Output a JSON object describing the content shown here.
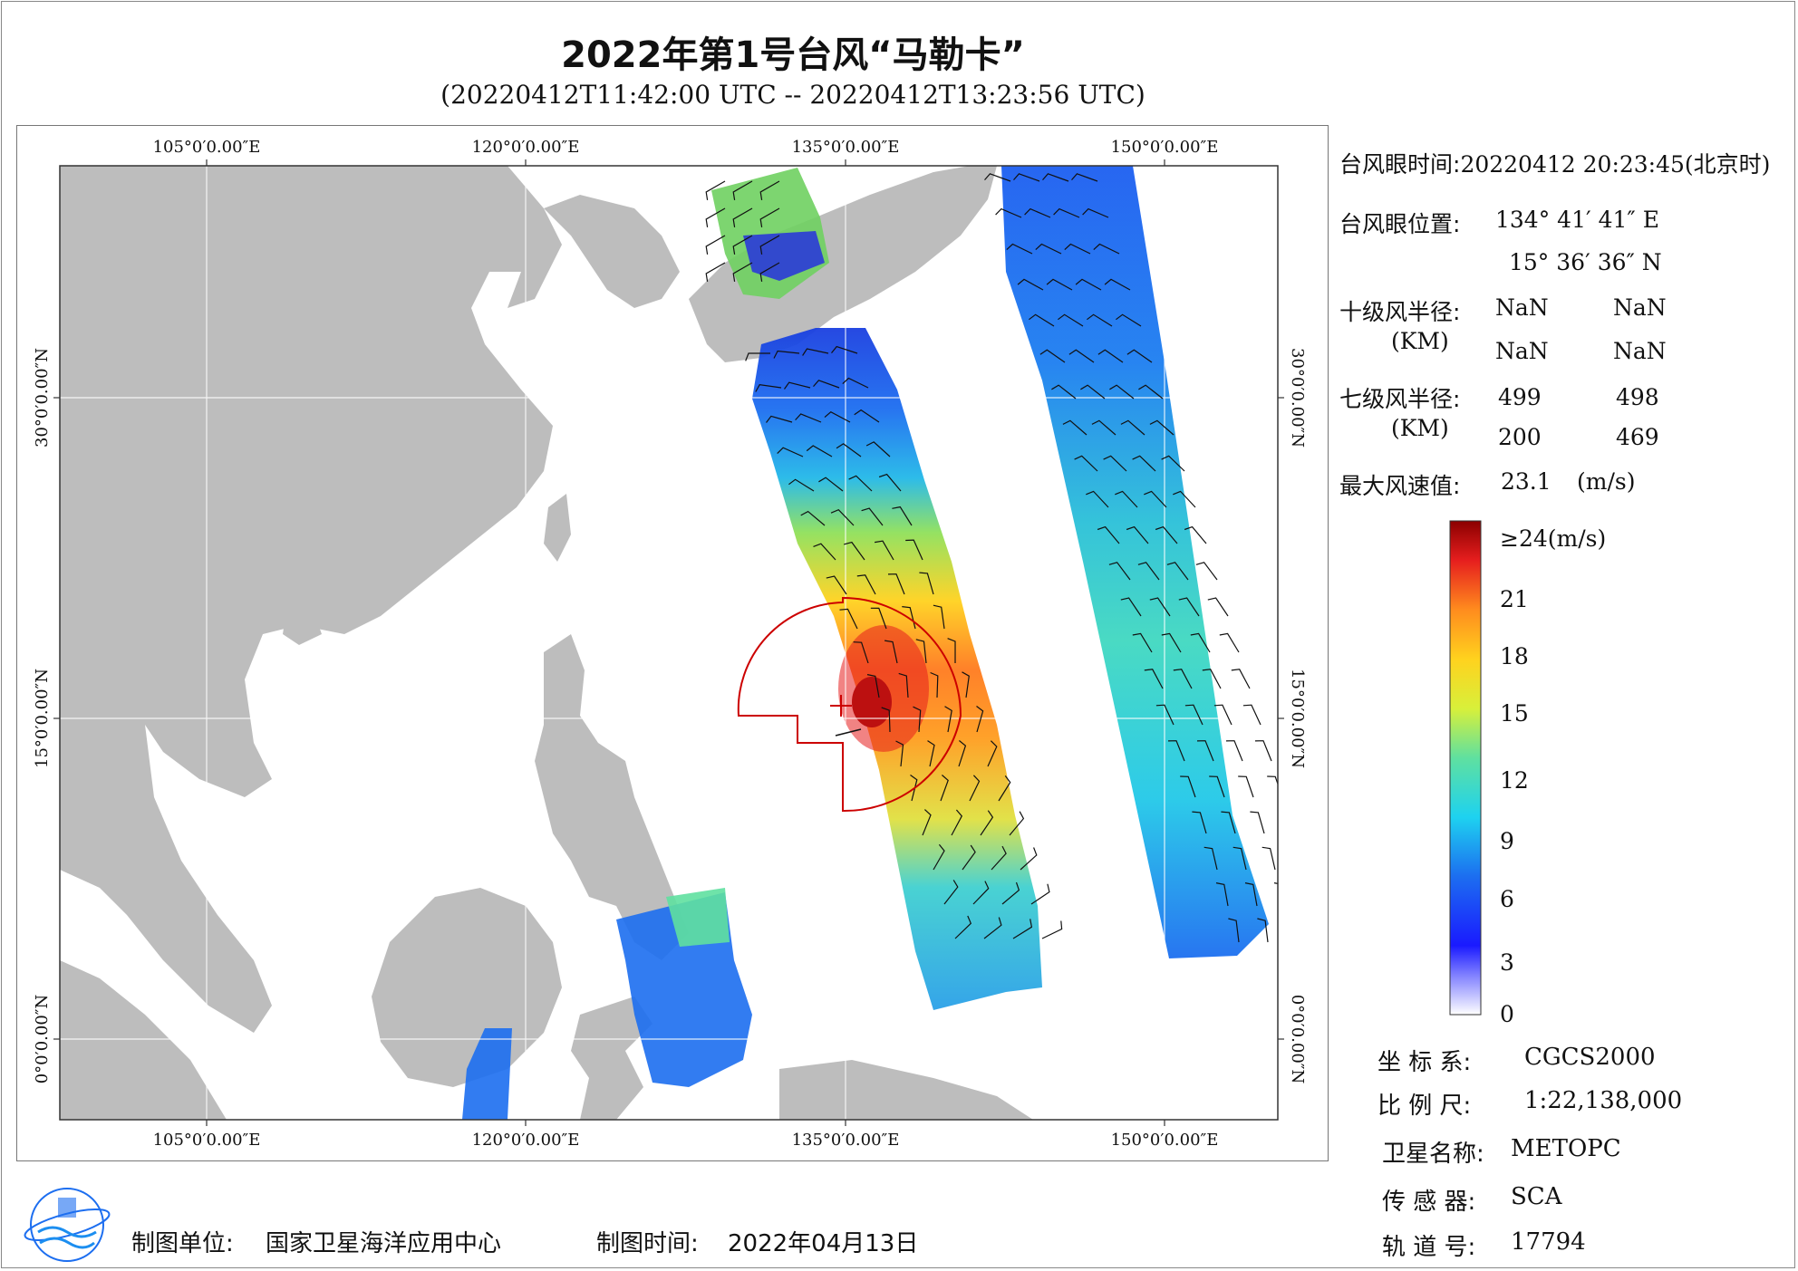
{
  "title": "2022年第1号台风“马勒卡”",
  "subtitle": "(20220412T11:42:00 UTC -- 20220412T13:23:56 UTC)",
  "map": {
    "top_lon_labels": [
      "105°0′0.00″E",
      "120°0′0.00″E",
      "135°0′0.00″E",
      "150°0′0.00″E"
    ],
    "bottom_lon_labels": [
      "105°0′0.00″E",
      "120°0′0.00″E",
      "135°0′0.00″E",
      "150°0′0.00″E"
    ],
    "left_lat_labels": [
      "30°0′0.00″N",
      "15°0′0.00″N",
      "0°0′0.00″N"
    ],
    "right_lat_labels": [
      "30°0′0.00″N",
      "15°0′0.00″N",
      "0°0′0.00″N"
    ],
    "land_color": "#bdbdbd",
    "ocean_color": "#ffffff",
    "wind_radius_color": "#cc0000"
  },
  "info": {
    "eye_time_label": "台风眼时间:",
    "eye_time_value": "20220412 20:23:45(北京时)",
    "eye_pos_label": "台风眼位置:",
    "eye_lon": "134° 41′ 41″ E",
    "eye_lat": "15° 36′ 36″ N",
    "r10_label": "十级风半径:",
    "r10_unit": "(KM)",
    "r10_values": [
      "NaN",
      "NaN",
      "NaN",
      "NaN"
    ],
    "r7_label": "七级风半径:",
    "r7_unit": "(KM)",
    "r7_values": [
      "499",
      "498",
      "200",
      "469"
    ],
    "max_wind_label": "最大风速值:",
    "max_wind_value": "23.1",
    "max_wind_unit": "(m/s)"
  },
  "colorbar": {
    "labels": [
      "≥24(m/s)",
      "21",
      "18",
      "15",
      "12",
      "9",
      "6",
      "3",
      "0"
    ],
    "max": 24,
    "min": 0
  },
  "meta": {
    "crs_label": "坐 标 系:",
    "crs_value": "CGCS2000",
    "scale_label": "比 例 尺:",
    "scale_value": "1:22,138,000",
    "sat_label": "卫星名称:",
    "sat_value": "METOPC",
    "sensor_label": "传 感 器:",
    "sensor_value": "SCA",
    "orbit_label": "轨 道 号:",
    "orbit_value": "17794"
  },
  "footer": {
    "org_label": "制图单位:",
    "org_value": "国家卫星海洋应用中心",
    "date_label": "制图时间:",
    "date_value": "2022年04月13日"
  }
}
